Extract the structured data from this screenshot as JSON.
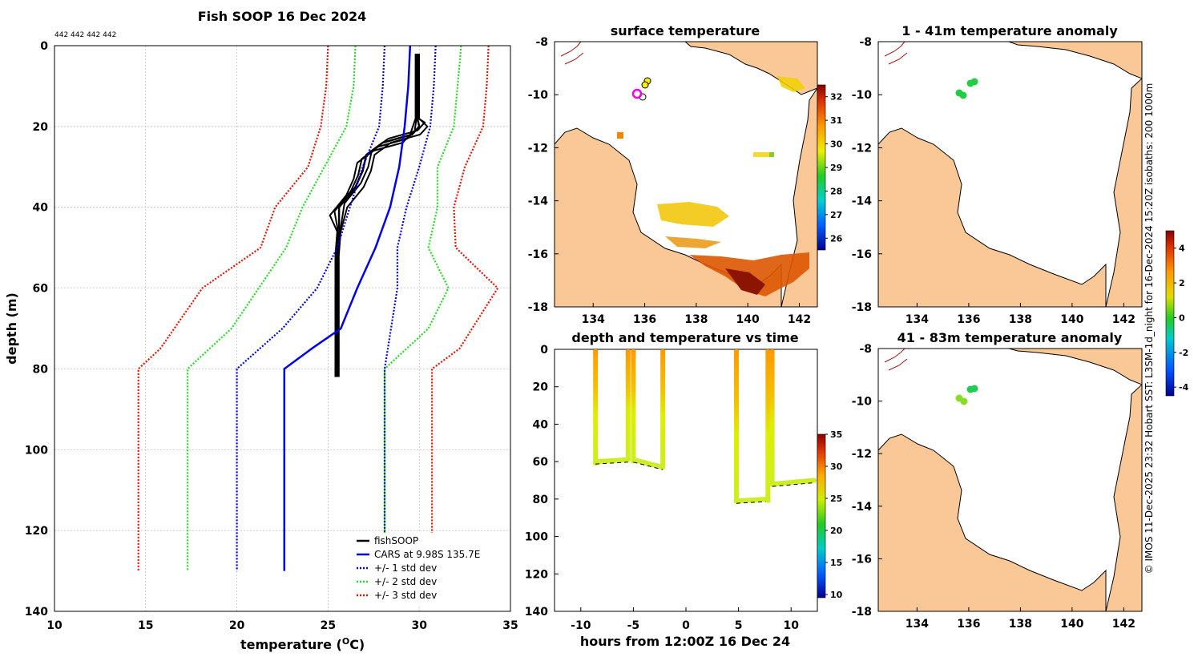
{
  "colors": {
    "fish": "#000000",
    "cars": "#0000ee",
    "std1": "#0000ee",
    "std2": "#22dd22",
    "std3": "#ee1100",
    "land": "#f9c896",
    "grid": "#bbbbbb"
  },
  "chart_data": [
    {
      "type": "line",
      "title": "Fish SOOP 16 Dec 2024",
      "subtitle": "442 442 442 442",
      "xlabel": "temperature (",
      "xlabel_unit": "O",
      "xlabel_end": "C)",
      "ylabel": "depth (m)",
      "xlim": [
        10,
        35
      ],
      "ylim": [
        140,
        0
      ],
      "xticks": [
        "10",
        "15",
        "20",
        "25",
        "30",
        "35"
      ],
      "yticks": [
        "0",
        "20",
        "40",
        "60",
        "80",
        "100",
        "120",
        "140"
      ],
      "legend": [
        "fishSOOP",
        "CARS at 9.98S 135.7E",
        "+/- 1 std dev",
        "+/- 2 std dev",
        "+/- 3 std dev"
      ],
      "series": [
        {
          "name": "fishSOOP",
          "temp": [
            29.9,
            29.9,
            29.9,
            29.9,
            29.9,
            30.0,
            29.6,
            28.0,
            27.1,
            26.9,
            26.5,
            25.6,
            25.6,
            25.5,
            25.5,
            25.5,
            25.5,
            25.5
          ],
          "depth": [
            2,
            5,
            10,
            15,
            18,
            20,
            22,
            24,
            27,
            31,
            35,
            40,
            46,
            52,
            58,
            65,
            75,
            82
          ]
        },
        {
          "name": "CARS at 9.98S 135.7E",
          "temp": [
            29.5,
            29.4,
            29.2,
            28.9,
            28.4,
            27.6,
            26.6,
            25.7,
            24.1,
            22.6,
            22.6
          ],
          "depth": [
            0,
            10,
            20,
            30,
            40,
            50,
            60,
            70,
            75,
            80,
            130
          ]
        },
        {
          "name": "+1 std dev",
          "temp": [
            30.9,
            30.8,
            30.6,
            30.0,
            29.3,
            28.8,
            28.8,
            28.1,
            28.1
          ],
          "depth": [
            0,
            10,
            20,
            30,
            40,
            50,
            60,
            80,
            130
          ]
        },
        {
          "name": "-1 std dev",
          "temp": [
            28.1,
            28.0,
            27.8,
            26.9,
            26.2,
            25.5,
            24.4,
            22.5,
            20.0,
            20.0
          ],
          "depth": [
            0,
            10,
            20,
            30,
            40,
            50,
            60,
            70,
            80,
            130
          ]
        },
        {
          "name": "+2 std dev",
          "temp": [
            32.3,
            32.1,
            31.9,
            31.0,
            31.0,
            30.5,
            31.6,
            30.5,
            28.1,
            28.1
          ],
          "depth": [
            0,
            10,
            20,
            30,
            40,
            50,
            60,
            70,
            80,
            130
          ]
        },
        {
          "name": "-2 std dev",
          "temp": [
            26.5,
            26.4,
            26.0,
            24.8,
            23.6,
            22.7,
            21.2,
            19.7,
            17.3,
            17.3
          ],
          "depth": [
            0,
            10,
            20,
            30,
            40,
            50,
            60,
            70,
            80,
            130
          ]
        },
        {
          "name": "+3 std dev",
          "temp": [
            33.8,
            33.7,
            33.5,
            32.5,
            31.9,
            32.0,
            34.3,
            32.2,
            30.7,
            30.7
          ],
          "depth": [
            0,
            10,
            20,
            30,
            40,
            50,
            60,
            75,
            80,
            130
          ]
        },
        {
          "name": "-3 std dev",
          "temp": [
            25.0,
            24.9,
            24.6,
            23.9,
            22.1,
            21.3,
            18.1,
            15.8,
            14.6,
            14.6
          ],
          "depth": [
            0,
            10,
            20,
            30,
            40,
            50,
            60,
            75,
            80,
            130
          ]
        }
      ]
    },
    {
      "type": "heatmap",
      "title": "surface temperature",
      "xticks": [
        "134",
        "136",
        "138",
        "140",
        "142"
      ],
      "yticks": [
        "-8",
        "-10",
        "-12",
        "-14",
        "-16",
        "-18"
      ],
      "xlim": [
        132.5,
        142.7
      ],
      "ylim": [
        -18,
        -8
      ],
      "colorbar_ticks": [
        "32",
        "31",
        "30",
        "29",
        "28",
        "27",
        "26"
      ],
      "colorbar_range": [
        25.5,
        32.5
      ]
    },
    {
      "type": "scatter",
      "title": "depth and temperature vs time",
      "xlabel": "hours from 12:00Z 16 Dec 24",
      "xticks": [
        "-10",
        "-5",
        "0",
        "5",
        "10"
      ],
      "yticks": [
        "0",
        "20",
        "40",
        "60",
        "80",
        "100",
        "120",
        "140"
      ],
      "xlim": [
        -12.5,
        12.5
      ],
      "ylim": [
        140,
        0
      ],
      "colorbar_ticks": [
        "35",
        "30",
        "25",
        "20",
        "15",
        "10"
      ],
      "colorbar_range": [
        9.5,
        35
      ],
      "segments": [
        {
          "t": [
            -8.6,
            -8.6
          ],
          "depth": [
            0,
            62
          ]
        },
        {
          "t": [
            -8.6,
            -5.5
          ],
          "depth": [
            60,
            59
          ]
        },
        {
          "t": [
            -5.5,
            -5.5
          ],
          "depth": [
            0,
            60
          ]
        },
        {
          "t": [
            -5.0,
            -5.0
          ],
          "depth": [
            0,
            61
          ]
        },
        {
          "t": [
            -5.0,
            -2.2
          ],
          "depth": [
            59,
            63
          ]
        },
        {
          "t": [
            -2.2,
            -2.2
          ],
          "depth": [
            0,
            63
          ]
        },
        {
          "t": [
            4.8,
            4.8
          ],
          "depth": [
            0,
            82
          ]
        },
        {
          "t": [
            4.8,
            7.8
          ],
          "depth": [
            81,
            80
          ]
        },
        {
          "t": [
            7.8,
            7.8
          ],
          "depth": [
            0,
            82
          ]
        },
        {
          "t": [
            8.2,
            8.2
          ],
          "depth": [
            0,
            72
          ]
        },
        {
          "t": [
            8.2,
            12.2
          ],
          "depth": [
            72,
            70
          ]
        }
      ]
    },
    {
      "type": "scatter",
      "title": "1 - 41m temperature anomaly",
      "xticks": [
        "134",
        "136",
        "138",
        "140",
        "142"
      ],
      "yticks": [
        "-8",
        "-10",
        "-12",
        "-14",
        "-16",
        "-18"
      ]
    },
    {
      "type": "scatter",
      "title": "41 - 83m temperature anomaly",
      "xticks": [
        "134",
        "136",
        "138",
        "140",
        "142"
      ],
      "yticks": [
        "-8",
        "-10",
        "-12",
        "-14",
        "-16",
        "-18"
      ],
      "colorbar_ticks": [
        "4",
        "2",
        "0",
        "-2",
        "-4"
      ],
      "colorbar_range": [
        -4.5,
        5
      ]
    }
  ],
  "credit": "© IMOS 11-Dec-2025 23:32 Hobart SST: L3SM-1d_night for 16-Dec-2024 15:20Z isobaths: 200  1000m"
}
